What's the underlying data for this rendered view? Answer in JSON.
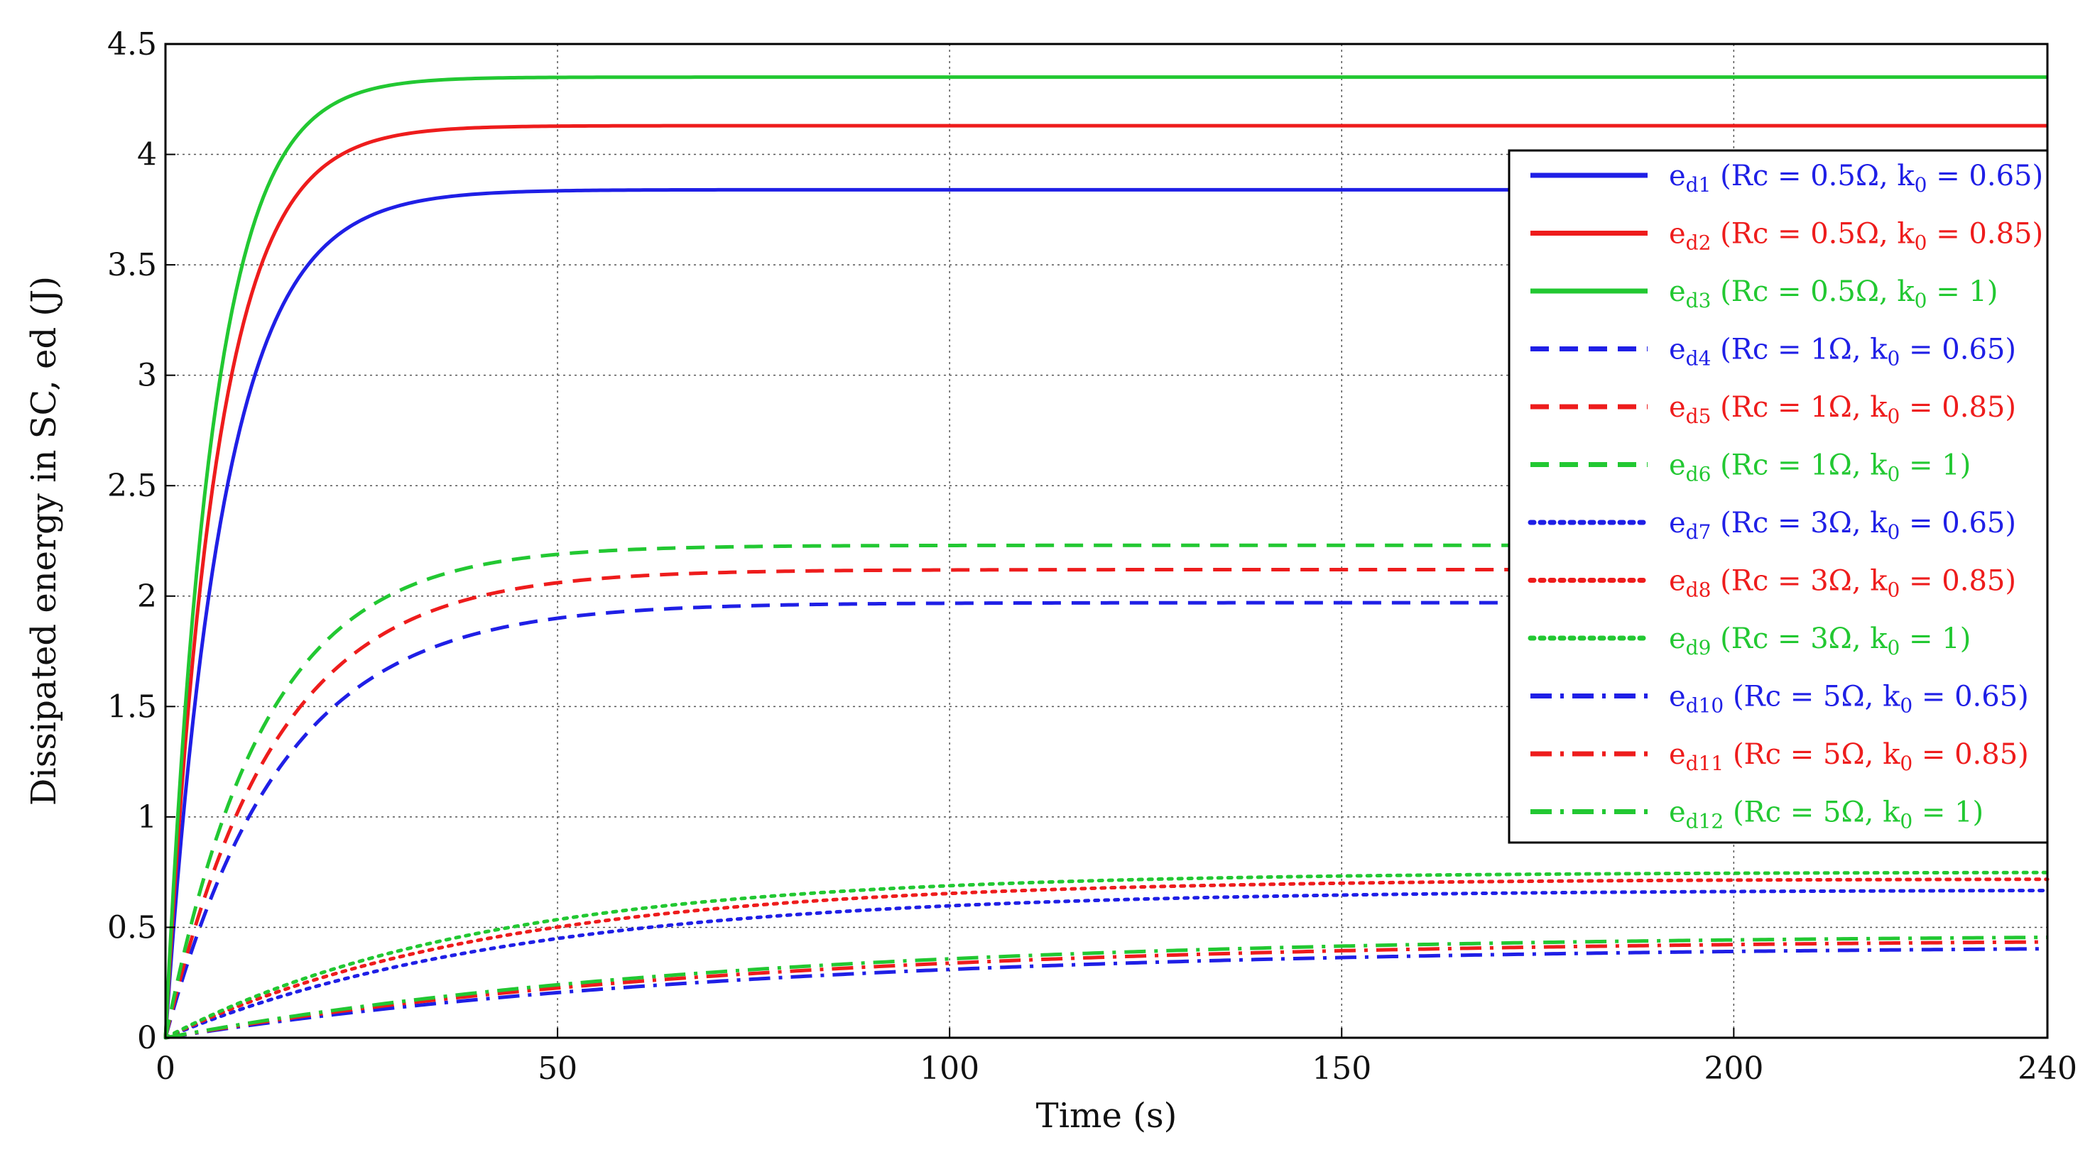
{
  "chart_data": {
    "type": "line",
    "title": "",
    "xlabel": "Time (s)",
    "ylabel": "Dissipated energy in SC, ed (J)",
    "xlim": [
      0,
      240
    ],
    "ylim": [
      0,
      4.5
    ],
    "xticks": [
      0,
      50,
      100,
      150,
      200,
      240
    ],
    "xtick_labels": [
      "0",
      "50",
      "100",
      "150",
      "200",
      "240"
    ],
    "yticks": [
      0,
      0.5,
      1,
      1.5,
      2,
      2.5,
      3,
      3.5,
      4,
      4.5
    ],
    "ytick_labels": [
      "0",
      "0.5",
      "1",
      "1.5",
      "2",
      "2.5",
      "3",
      "3.5",
      "4",
      "4.5"
    ],
    "grid": true,
    "legend_position": "right",
    "colors": {
      "blue": "#1f1fe6",
      "red": "#ee1c1c",
      "green": "#22c832"
    },
    "series": [
      {
        "id": "ed1",
        "sym": "e",
        "sub": "d1",
        "desc": " (Rc = 0.5Ω, k",
        "k_sub": "0",
        "desc_end": " = 0.65)",
        "color": "blue",
        "dash": "solid",
        "final": 3.84,
        "tau": 7.5,
        "description": "Final energy 3.84 J"
      },
      {
        "id": "ed2",
        "sym": "e",
        "sub": "d2",
        "desc": " (Rc = 0.5Ω, k",
        "k_sub": "0",
        "desc_end": " = 0.85)",
        "color": "red",
        "dash": "solid",
        "final": 4.13,
        "tau": 6.5,
        "description": "Final energy 4.13 J"
      },
      {
        "id": "ed3",
        "sym": "e",
        "sub": "d3",
        "desc": " (Rc = 0.5Ω, k",
        "k_sub": "0",
        "desc_end": " = 1)",
        "color": "green",
        "dash": "solid",
        "final": 4.35,
        "tau": 6.0,
        "description": "Final energy 4.35 J"
      },
      {
        "id": "ed4",
        "sym": "e",
        "sub": "d4",
        "desc": " (Rc = 1Ω, k",
        "k_sub": "0",
        "desc_end": " = 0.65)",
        "color": "blue",
        "dash": "dashed",
        "final": 1.97,
        "tau": 15,
        "description": "Final energy 1.97 J"
      },
      {
        "id": "ed5",
        "sym": "e",
        "sub": "d5",
        "desc": " (Rc = 1Ω, k",
        "k_sub": "0",
        "desc_end": " = 0.85)",
        "color": "red",
        "dash": "dashed",
        "final": 2.12,
        "tau": 14,
        "description": "Final energy 2.12 J"
      },
      {
        "id": "ed6",
        "sym": "e",
        "sub": "d6",
        "desc": " (Rc = 1Ω, k",
        "k_sub": "0",
        "desc_end": " = 1)",
        "color": "green",
        "dash": "dashed",
        "final": 2.23,
        "tau": 12.5,
        "description": "Final energy 2.23 J"
      },
      {
        "id": "ed7",
        "sym": "e",
        "sub": "d7",
        "desc": " (Rc = 3Ω, k",
        "k_sub": "0",
        "desc_end": " = 0.65)",
        "color": "blue",
        "dash": "dotted",
        "final": 0.67,
        "tau": 45,
        "description": "Final energy 0.67 J"
      },
      {
        "id": "ed8",
        "sym": "e",
        "sub": "d8",
        "desc": " (Rc = 3Ω, k",
        "k_sub": "0",
        "desc_end": " = 0.85)",
        "color": "red",
        "dash": "dotted",
        "final": 0.72,
        "tau": 42,
        "description": "Final energy 0.72 J"
      },
      {
        "id": "ed9",
        "sym": "e",
        "sub": "d9",
        "desc": " (Rc = 3Ω, k",
        "k_sub": "0",
        "desc_end": " = 1)",
        "color": "green",
        "dash": "dotted",
        "final": 0.75,
        "tau": 40,
        "description": "Final energy 0.75 J"
      },
      {
        "id": "ed10",
        "sym": "e",
        "sub": "d10",
        "desc": " (Rc = 5Ω, k",
        "k_sub": "0",
        "desc_end": " = 0.65)",
        "color": "blue",
        "dash": "dashdot",
        "final": 0.42,
        "tau": 75,
        "description": "Final energy 0.42 J"
      },
      {
        "id": "ed11",
        "sym": "e",
        "sub": "d11",
        "desc": " (Rc = 5Ω, k",
        "k_sub": "0",
        "desc_end": " = 0.85)",
        "color": "red",
        "dash": "dashdot",
        "final": 0.45,
        "tau": 72,
        "description": "Final energy 0.45 J"
      },
      {
        "id": "ed12",
        "sym": "e",
        "sub": "d12",
        "desc": " (Rc = 5Ω, k",
        "k_sub": "0",
        "desc_end": " = 1)",
        "color": "green",
        "dash": "dashdot",
        "final": 0.47,
        "tau": 70,
        "description": "Final energy 0.47 J"
      }
    ]
  }
}
